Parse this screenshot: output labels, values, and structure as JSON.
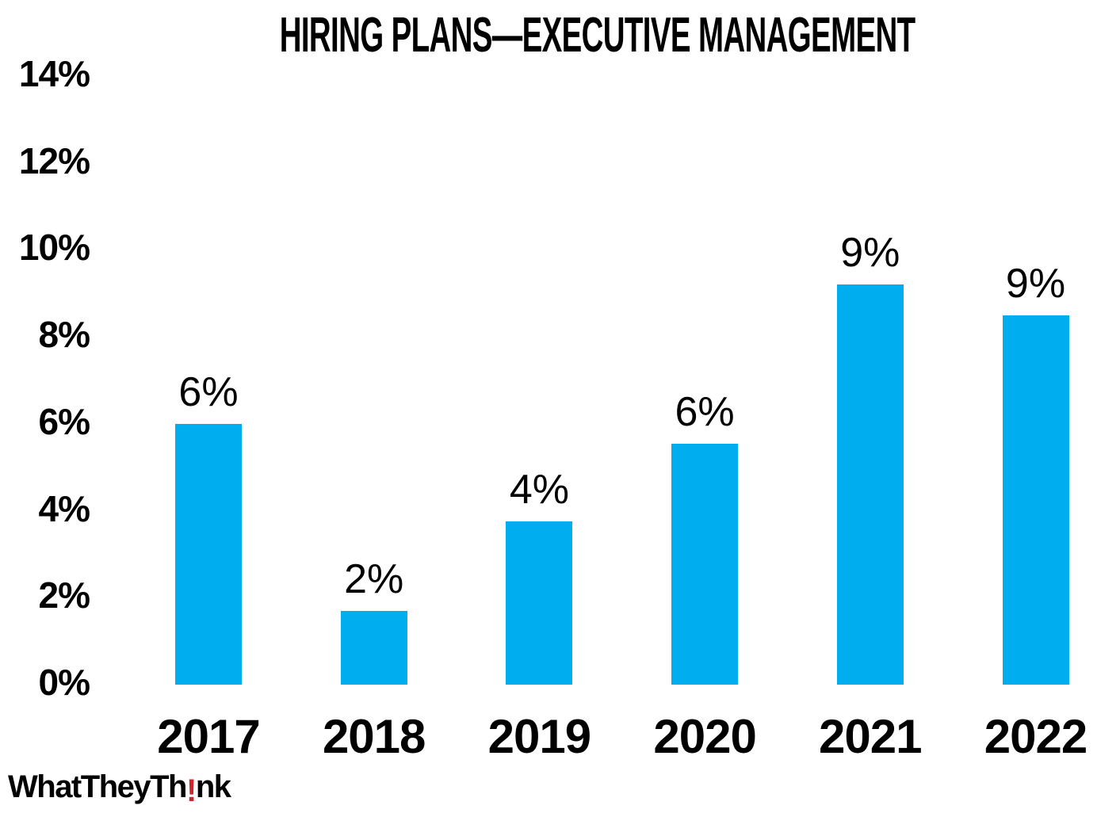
{
  "chart_data": {
    "type": "bar",
    "title": "HIRING PLANS—EXECUTIVE MANAGEMENT",
    "categories": [
      "2017",
      "2018",
      "2019",
      "2020",
      "2021",
      "2022"
    ],
    "values": [
      6,
      2,
      4,
      6,
      9,
      9
    ],
    "bar_labels": [
      "6%",
      "2%",
      "4%",
      "6%",
      "9%",
      "9%"
    ],
    "plotted_values": [
      6.0,
      1.7,
      3.75,
      5.55,
      9.2,
      8.5
    ],
    "y_ticks": [
      {
        "label": "14%",
        "value": 14
      },
      {
        "label": "12%",
        "value": 12
      },
      {
        "label": "10%",
        "value": 10
      },
      {
        "label": "8%",
        "value": 8
      },
      {
        "label": "6%",
        "value": 6
      },
      {
        "label": "4%",
        "value": 4
      },
      {
        "label": "2%",
        "value": 2
      },
      {
        "label": "0%",
        "value": 0
      }
    ],
    "ylim": [
      0,
      14
    ],
    "xlabel": "",
    "ylabel": "",
    "grid": false,
    "legend": false,
    "bar_color": "#00AEEF"
  },
  "logo": {
    "part1": "WhatTheyTh",
    "bang": "!",
    "part2": "nk",
    "bang_color": "#D2232A"
  },
  "colors": {
    "background": "#FFFFFF",
    "text": "#000000",
    "bar": "#00AEEF",
    "logo_red": "#D2232A"
  }
}
